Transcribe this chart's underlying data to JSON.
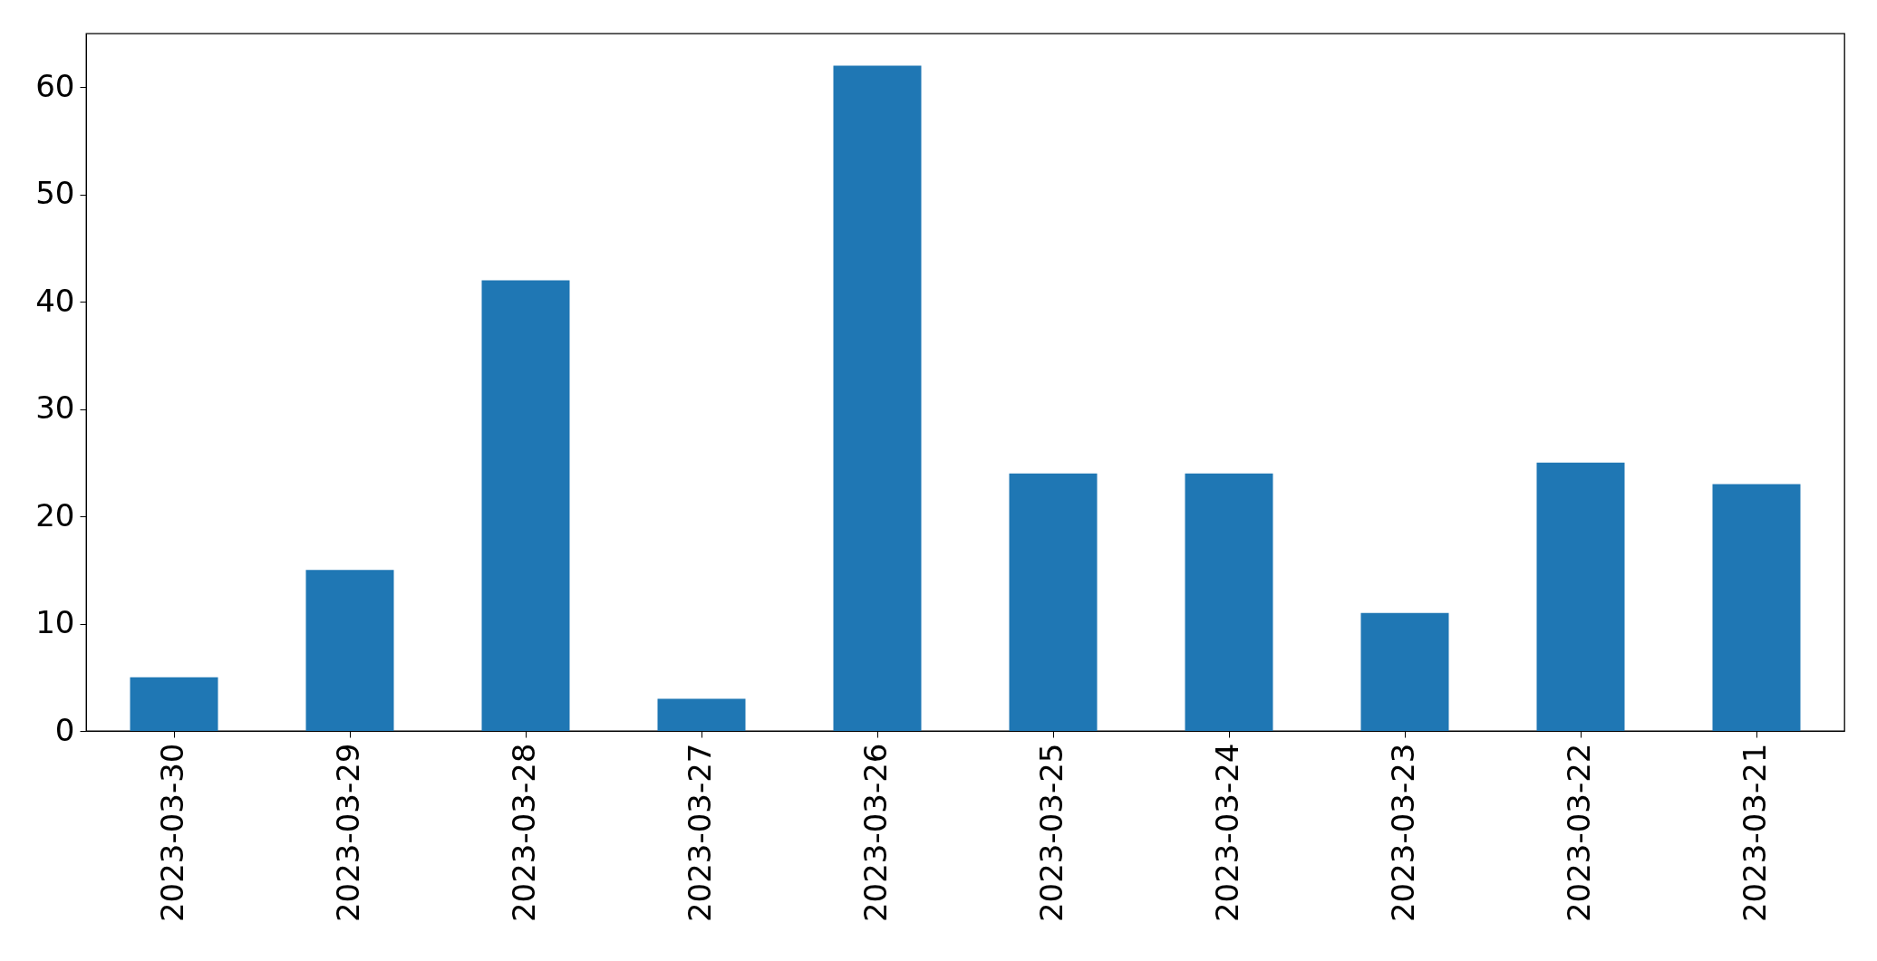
{
  "chart_data": {
    "type": "bar",
    "categories": [
      "2023-03-30",
      "2023-03-29",
      "2023-03-28",
      "2023-03-27",
      "2023-03-26",
      "2023-03-25",
      "2023-03-24",
      "2023-03-23",
      "2023-03-22",
      "2023-03-21"
    ],
    "values": [
      5,
      15,
      42,
      3,
      62,
      24,
      24,
      11,
      25,
      23
    ],
    "color": "#1f77b4",
    "ylim": [
      0,
      65
    ],
    "yticks": [
      0,
      10,
      20,
      30,
      40,
      50,
      60
    ]
  }
}
